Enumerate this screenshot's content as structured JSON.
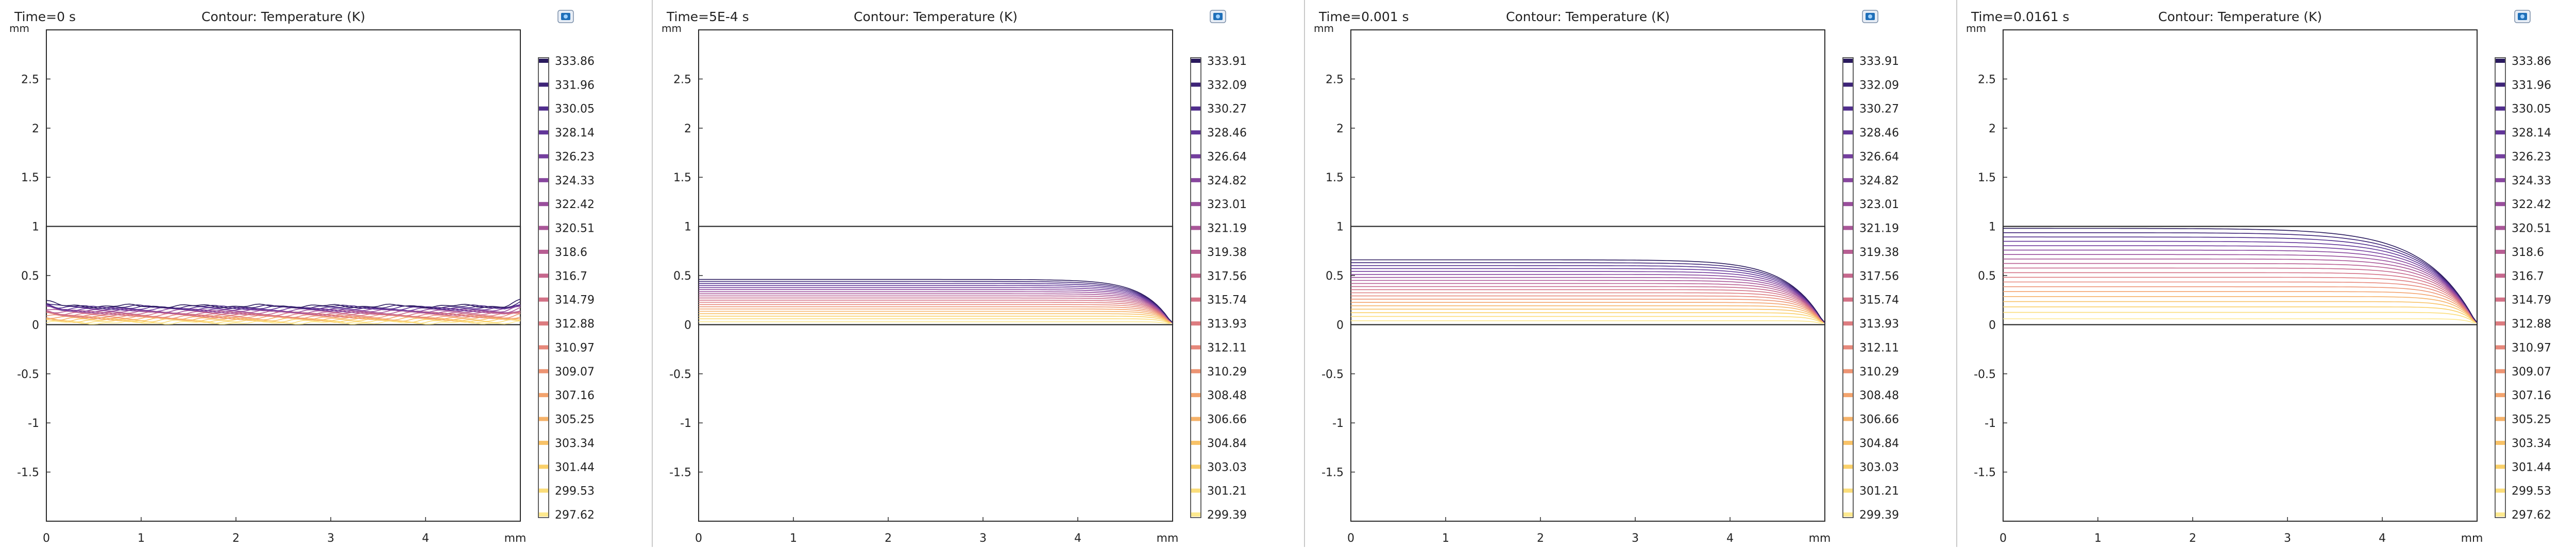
{
  "x_unit_label": "mm",
  "y_unit_label": "mm",
  "colors": {
    "frame": "#2b2b2b",
    "contour_scale": [
      "#2a1a5e",
      "#4b2a8a",
      "#6a3a9e",
      "#8b479e",
      "#a85599",
      "#c2648f",
      "#d77484",
      "#e8897a",
      "#f2a06e",
      "#f7bb66",
      "#fad46a",
      "#fde98f"
    ],
    "camera_icon": "#1f6fb8"
  },
  "chart_data": [
    {
      "type": "contour",
      "time_label": "Time=0 s",
      "title": "Contour: Temperature (K)",
      "xlim": [
        0,
        5
      ],
      "ylim": [
        -2,
        3
      ],
      "x_ticks": [
        "0",
        "1",
        "2",
        "3",
        "4",
        "mm"
      ],
      "y_ticks": [
        "2.5",
        "2",
        "1.5",
        "1",
        "0.5",
        "0",
        "-0.5",
        "-1",
        "-1.5"
      ],
      "domain": {
        "x": [
          0,
          5
        ],
        "y": [
          0,
          1
        ]
      },
      "legend_values": [
        "333.86",
        "331.96",
        "330.05",
        "328.14",
        "326.23",
        "324.33",
        "322.42",
        "320.51",
        "318.6",
        "316.7",
        "314.79",
        "312.88",
        "310.97",
        "309.07",
        "307.16",
        "305.25",
        "303.34",
        "301.44",
        "299.53",
        "297.62"
      ],
      "contour_depth_range_mm": [
        0.02,
        0.19
      ],
      "edge_effect": "wavy"
    },
    {
      "type": "contour",
      "time_label": "Time=5E-4 s",
      "title": "Contour: Temperature (K)",
      "xlim": [
        0,
        5
      ],
      "ylim": [
        -2,
        3
      ],
      "x_ticks": [
        "0",
        "1",
        "2",
        "3",
        "4",
        "mm"
      ],
      "y_ticks": [
        "2.5",
        "2",
        "1.5",
        "1",
        "0.5",
        "0",
        "-0.5",
        "-1",
        "-1.5"
      ],
      "domain": {
        "x": [
          0,
          5
        ],
        "y": [
          0,
          1
        ]
      },
      "legend_values": [
        "333.91",
        "332.09",
        "330.27",
        "328.46",
        "326.64",
        "324.82",
        "323.01",
        "321.19",
        "319.38",
        "317.56",
        "315.74",
        "313.93",
        "312.11",
        "310.29",
        "308.48",
        "306.66",
        "304.84",
        "303.03",
        "301.21",
        "299.39"
      ],
      "contour_depth_range_mm": [
        0.03,
        0.46
      ],
      "edge_effect": "corner"
    },
    {
      "type": "contour",
      "time_label": "Time=0.001 s",
      "title": "Contour: Temperature (K)",
      "xlim": [
        0,
        5
      ],
      "ylim": [
        -2,
        3
      ],
      "x_ticks": [
        "0",
        "1",
        "2",
        "3",
        "4",
        "mm"
      ],
      "y_ticks": [
        "2.5",
        "2",
        "1.5",
        "1",
        "0.5",
        "0",
        "-0.5",
        "-1",
        "-1.5"
      ],
      "domain": {
        "x": [
          0,
          5
        ],
        "y": [
          0,
          1
        ]
      },
      "legend_values": [
        "333.91",
        "332.09",
        "330.27",
        "328.46",
        "326.64",
        "324.82",
        "323.01",
        "321.19",
        "319.38",
        "317.56",
        "315.74",
        "313.93",
        "312.11",
        "310.29",
        "308.48",
        "306.66",
        "304.84",
        "303.03",
        "301.21",
        "299.39"
      ],
      "contour_depth_range_mm": [
        0.04,
        0.66
      ],
      "edge_effect": "corner"
    },
    {
      "type": "contour",
      "time_label": "Time=0.0161 s",
      "title": "Contour: Temperature (K)",
      "xlim": [
        0,
        5
      ],
      "ylim": [
        -2,
        3
      ],
      "x_ticks": [
        "0",
        "1",
        "2",
        "3",
        "4",
        "mm"
      ],
      "y_ticks": [
        "2.5",
        "2",
        "1.5",
        "1",
        "0.5",
        "0",
        "-0.5",
        "-1",
        "-1.5"
      ],
      "domain": {
        "x": [
          0,
          5
        ],
        "y": [
          0,
          1
        ]
      },
      "legend_values": [
        "333.86",
        "331.96",
        "330.05",
        "328.14",
        "326.23",
        "324.33",
        "322.42",
        "320.51",
        "318.6",
        "316.7",
        "314.79",
        "312.88",
        "310.97",
        "309.07",
        "307.16",
        "305.25",
        "303.34",
        "301.44",
        "299.53",
        "297.62"
      ],
      "contour_depth_range_mm": [
        0.06,
        0.98
      ],
      "edge_effect": "corner"
    }
  ]
}
